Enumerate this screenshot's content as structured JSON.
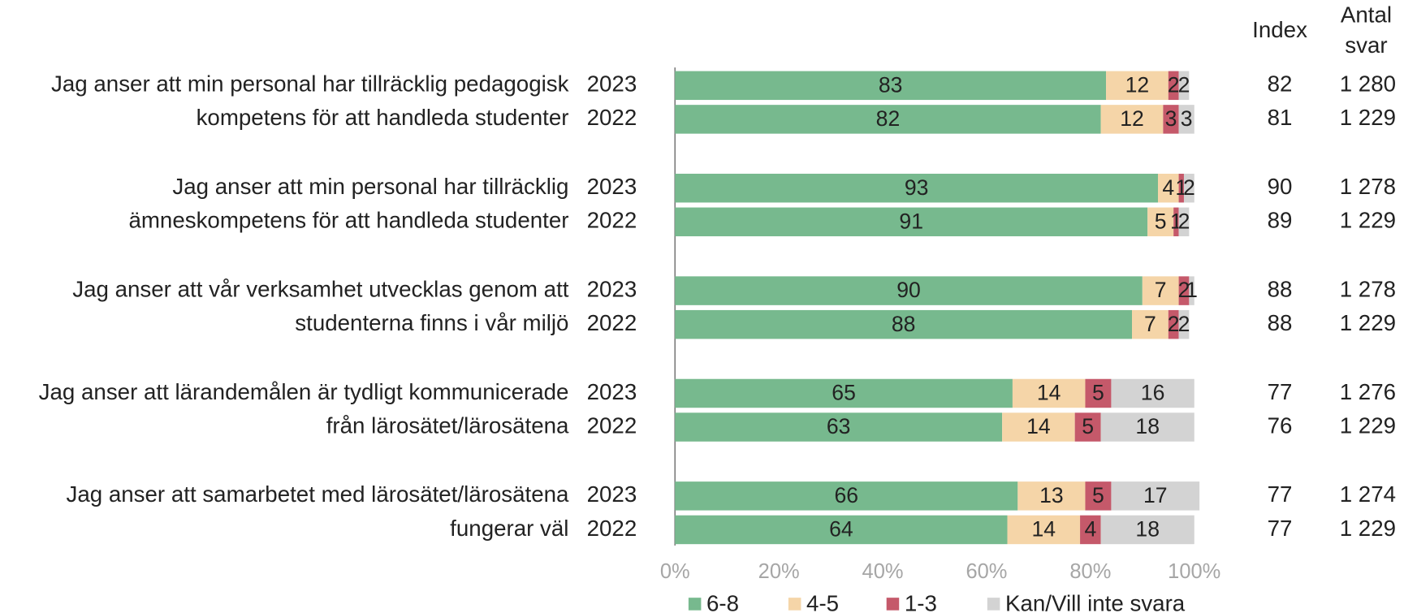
{
  "chart_data": {
    "type": "stacked_barh",
    "questions": [
      [
        "Jag anser att min personal har tillräcklig pedagogisk",
        "kompetens för att handleda studenter"
      ],
      [
        "Jag anser att min personal har tillräcklig",
        "ämneskompetens för att handleda studenter"
      ],
      [
        "Jag anser att vår verksamhet utvecklas genom att",
        "studenterna finns i vår miljö"
      ],
      [
        "Jag anser att lärandemålen är tydligt kommunicerade",
        "från lärosätet/lärosätena"
      ],
      [
        "Jag anser att samarbetet med lärosätet/lärosätena",
        "fungerar väl"
      ]
    ],
    "years": [
      "2023",
      "2022"
    ],
    "series": [
      {
        "name": "6-8",
        "color": "#77b98e",
        "values": [
          83,
          82,
          93,
          91,
          90,
          88,
          65,
          63,
          66,
          64
        ]
      },
      {
        "name": "4-5",
        "color": "#f5d5a8",
        "values": [
          12,
          12,
          4,
          5,
          7,
          7,
          14,
          14,
          13,
          14
        ]
      },
      {
        "name": "1-3",
        "color": "#c5596a",
        "values": [
          2,
          3,
          1,
          1,
          2,
          2,
          5,
          5,
          5,
          4
        ]
      },
      {
        "name": "Kan/Vill inte svara",
        "color": "#d3d3d3",
        "values": [
          2,
          3,
          2,
          2,
          1,
          2,
          16,
          18,
          17,
          18
        ]
      }
    ],
    "index_header": "Index",
    "count_header": [
      "Antal",
      "svar"
    ],
    "index": [
      82,
      81,
      90,
      89,
      88,
      88,
      77,
      76,
      77,
      77
    ],
    "count": [
      "1 280",
      "1 229",
      "1 278",
      "1 229",
      "1 278",
      "1 229",
      "1 276",
      "1 229",
      "1 274",
      "1 229"
    ],
    "xlim": [
      0,
      100
    ],
    "xticks": [
      {
        "value": 0,
        "label": "0%"
      },
      {
        "value": 20,
        "label": "20%"
      },
      {
        "value": 40,
        "label": "40%"
      },
      {
        "value": 60,
        "label": "60%"
      },
      {
        "value": 80,
        "label": "80%"
      },
      {
        "value": 100,
        "label": "100%"
      }
    ],
    "legend": "bottom"
  }
}
